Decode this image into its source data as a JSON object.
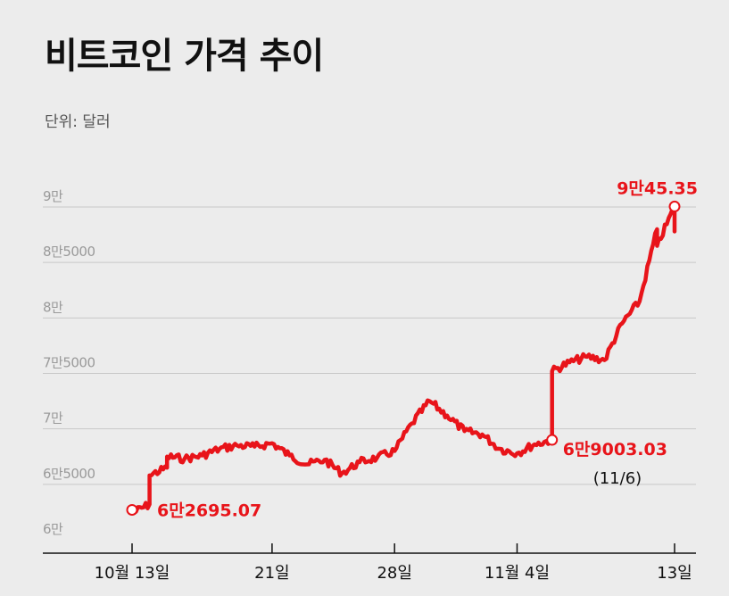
{
  "title": "비트코인 가격 추이",
  "unit_label": "단위: 달러",
  "colors": {
    "line": "#e8141a",
    "grid": "#c8c8c8",
    "axis": "#111111",
    "background": "#ececec"
  },
  "chart_data": {
    "type": "line",
    "title": "비트코인 가격 추이",
    "unit": "단위: 달러",
    "ylim": [
      60000,
      90000
    ],
    "yticks": [
      {
        "value": 60000,
        "label": "6만"
      },
      {
        "value": 65000,
        "label": "6만5000"
      },
      {
        "value": 70000,
        "label": "7만"
      },
      {
        "value": 75000,
        "label": "7만5000"
      },
      {
        "value": 80000,
        "label": "8만"
      },
      {
        "value": 85000,
        "label": "8만5000"
      },
      {
        "value": 90000,
        "label": "9만"
      }
    ],
    "xlim": [
      "2024-10-13",
      "2024-11-13"
    ],
    "xticks": [
      {
        "date": "2024-10-13",
        "label": "10월 13일"
      },
      {
        "date": "2024-10-21",
        "label": "21일"
      },
      {
        "date": "2024-10-28",
        "label": "28일"
      },
      {
        "date": "2024-11-04",
        "label": "11월 4일"
      },
      {
        "date": "2024-11-13",
        "label": "13일"
      }
    ],
    "grid": true,
    "series": [
      {
        "points": [
          [
            "2024-10-13",
            62695
          ],
          [
            "2024-10-13",
            62400
          ],
          [
            "2024-10-14",
            63200
          ],
          [
            "2024-10-14",
            65800
          ],
          [
            "2024-10-15",
            66500
          ],
          [
            "2024-10-15",
            67500
          ],
          [
            "2024-10-16",
            67300
          ],
          [
            "2024-10-17",
            67600
          ],
          [
            "2024-10-18",
            68200
          ],
          [
            "2024-10-19",
            68500
          ],
          [
            "2024-10-20",
            68400
          ],
          [
            "2024-10-21",
            68700
          ],
          [
            "2024-10-22",
            67600
          ],
          [
            "2024-10-23",
            66800
          ],
          [
            "2024-10-24",
            67200
          ],
          [
            "2024-10-25",
            66000
          ],
          [
            "2024-10-26",
            67000
          ],
          [
            "2024-10-27",
            67400
          ],
          [
            "2024-10-28",
            68000
          ],
          [
            "2024-10-29",
            70500
          ],
          [
            "2024-10-30",
            72500
          ],
          [
            "2024-10-31",
            71200
          ],
          [
            "2024-11-01",
            69800
          ],
          [
            "2024-11-02",
            69500
          ],
          [
            "2024-11-03",
            68200
          ],
          [
            "2024-11-04",
            67800
          ],
          [
            "2024-11-05",
            68600
          ],
          [
            "2024-11-06",
            69003
          ],
          [
            "2024-11-06",
            75200
          ],
          [
            "2024-11-07",
            76000
          ],
          [
            "2024-11-08",
            76500
          ],
          [
            "2024-11-09",
            76200
          ],
          [
            "2024-11-10",
            79500
          ],
          [
            "2024-11-11",
            81500
          ],
          [
            "2024-11-12",
            88000
          ],
          [
            "2024-11-12",
            86500
          ],
          [
            "2024-11-13",
            90045
          ],
          [
            "2024-11-13",
            87800
          ]
        ]
      }
    ],
    "annotations": [
      {
        "date": "2024-10-13",
        "value": 62695.07,
        "label": "6만2695.07"
      },
      {
        "date": "2024-11-06",
        "value": 69003.03,
        "label": "6만9003.03",
        "sublabel": "(11/6)"
      },
      {
        "date": "2024-11-13",
        "value": 90045.35,
        "label": "9만45.35"
      }
    ]
  }
}
